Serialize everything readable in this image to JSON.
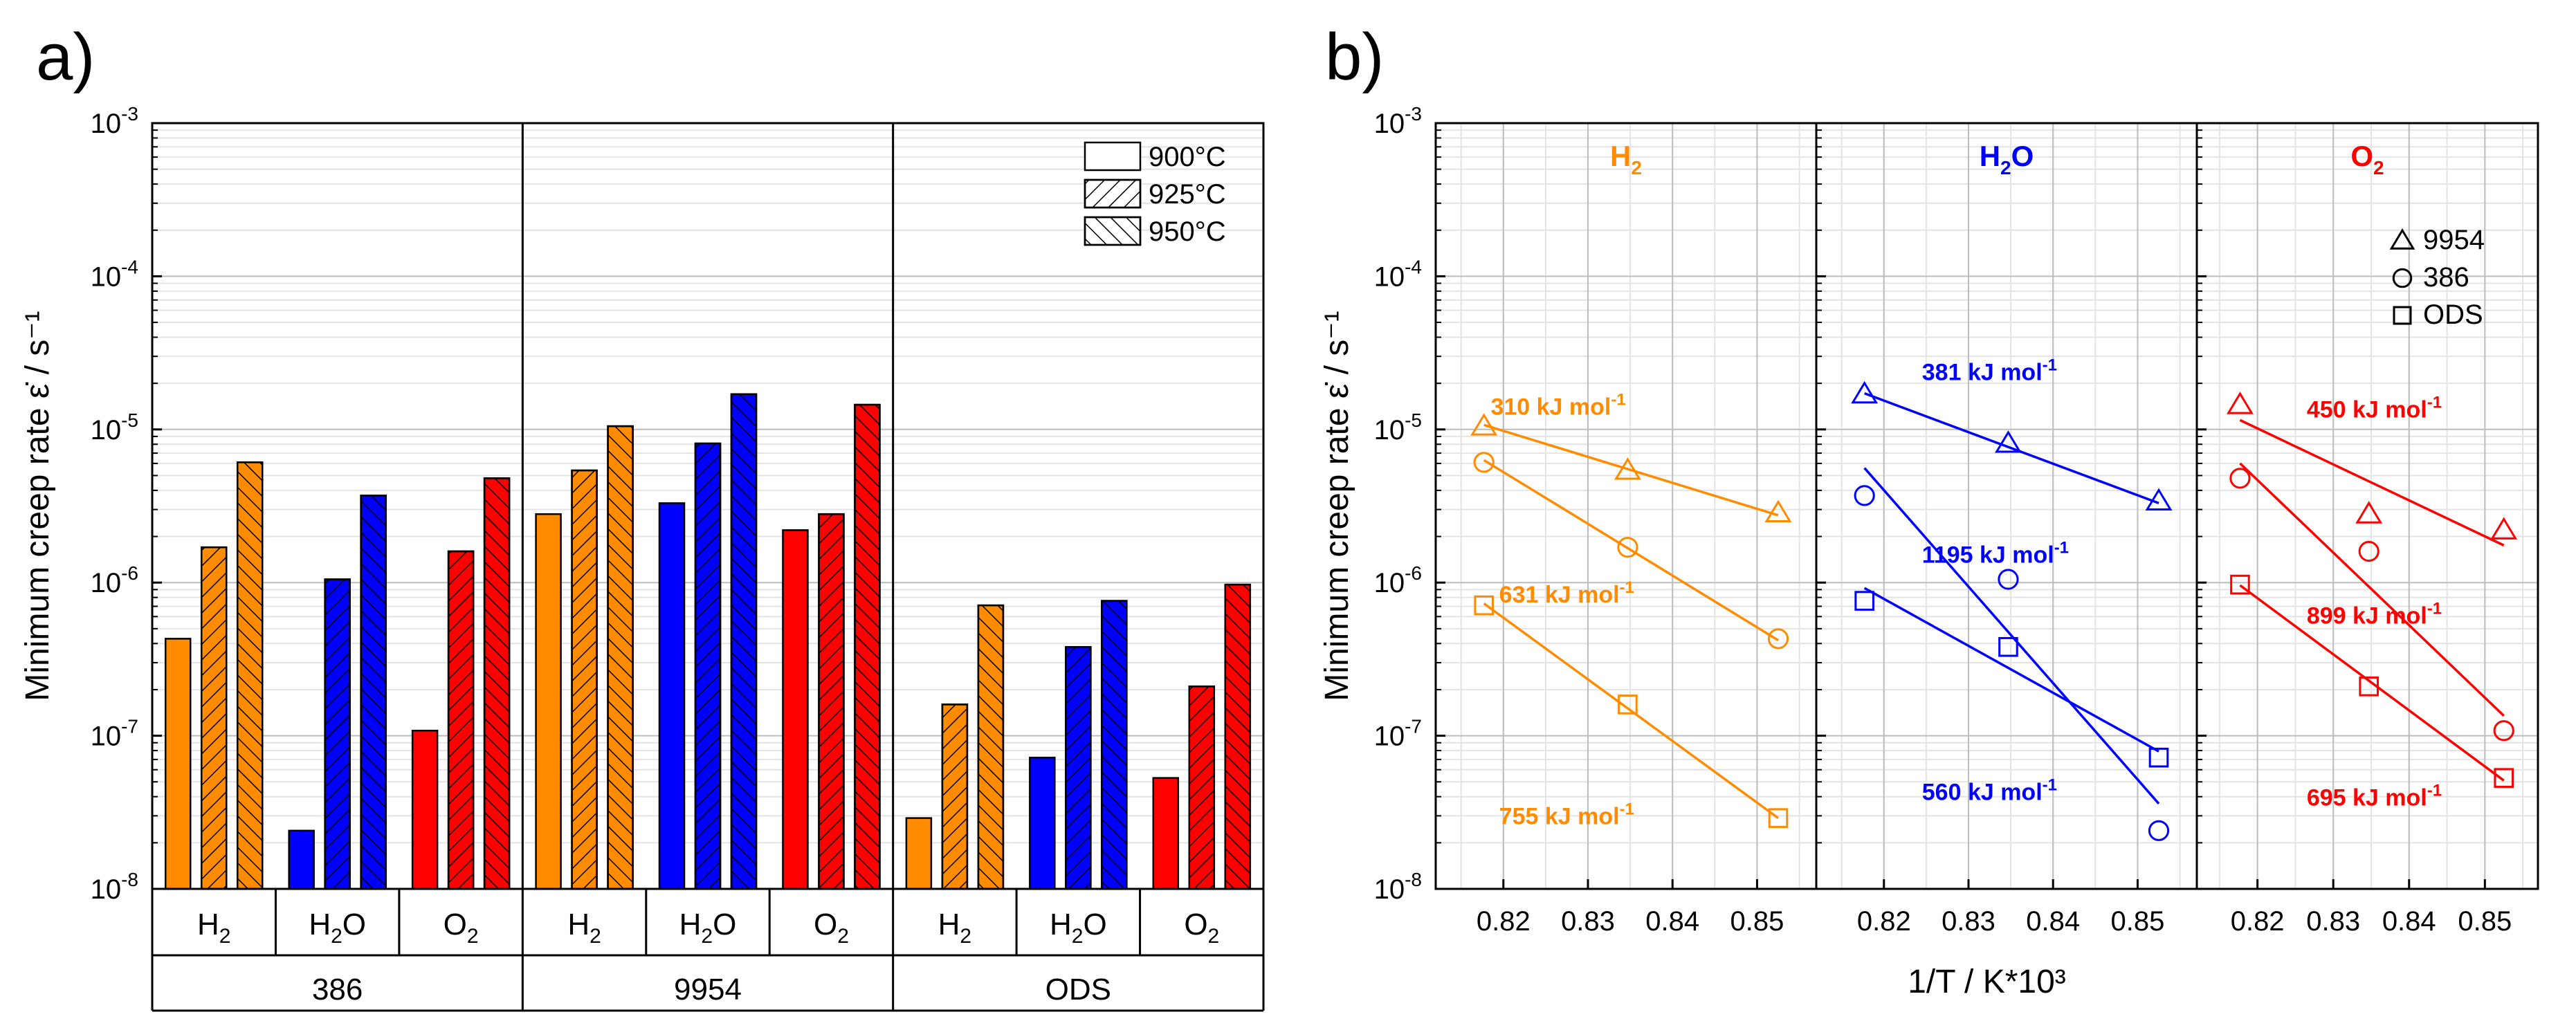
{
  "chart_data": [
    {
      "type": "bar",
      "panel_label": "a)",
      "ylabel": "Minimum creep rate ε̇ / s⁻¹",
      "yscale": "log",
      "ylim": [
        1e-08,
        0.001
      ],
      "ytick_exponents": [
        "-8",
        "-7",
        "-6",
        "-5",
        "-4",
        "-3"
      ],
      "tick_base": "10",
      "legend_position": "top-right",
      "legend": [
        {
          "label": "900°C",
          "pattern": "plain"
        },
        {
          "label": "925°C",
          "pattern": "forward-hatch"
        },
        {
          "label": "950°C",
          "pattern": "backward-hatch"
        }
      ],
      "groups": [
        {
          "name": "386",
          "subgroups": [
            {
              "label": "H",
              "sub": "2",
              "color": "#ff8c00",
              "values": [
                4.3e-07,
                1.7e-06,
                6.1e-06
              ]
            },
            {
              "label": "H",
              "sub": "2",
              "suffix": "O",
              "color": "#0000ff",
              "values": [
                2.4e-08,
                1.05e-06,
                3.7e-06
              ]
            },
            {
              "label": "O",
              "sub": "2",
              "color": "#ff0000",
              "values": [
                1.08e-07,
                1.6e-06,
                4.8e-06
              ]
            }
          ]
        },
        {
          "name": "9954",
          "subgroups": [
            {
              "label": "H",
              "sub": "2",
              "color": "#ff8c00",
              "values": [
                2.8e-06,
                5.4e-06,
                1.05e-05
              ]
            },
            {
              "label": "H",
              "sub": "2",
              "suffix": "O",
              "color": "#0000ff",
              "values": [
                3.3e-06,
                8.1e-06,
                1.7e-05
              ]
            },
            {
              "label": "O",
              "sub": "2",
              "color": "#ff0000",
              "values": [
                2.2e-06,
                2.8e-06,
                1.45e-05
              ]
            }
          ]
        },
        {
          "name": "ODS",
          "subgroups": [
            {
              "label": "H",
              "sub": "2",
              "color": "#ff8c00",
              "values": [
                2.9e-08,
                1.6e-07,
                7.1e-07
              ]
            },
            {
              "label": "H",
              "sub": "2",
              "suffix": "O",
              "color": "#0000ff",
              "values": [
                7.2e-08,
                3.8e-07,
                7.6e-07
              ]
            },
            {
              "label": "O",
              "sub": "2",
              "color": "#ff0000",
              "values": [
                5.3e-08,
                2.1e-07,
                9.7e-07
              ]
            }
          ]
        }
      ]
    },
    {
      "type": "scatter",
      "panel_label": "b)",
      "ylabel": "Minimum creep rate ε̇ / s⁻¹",
      "xlabel": "1/T / K*10³",
      "yscale": "log",
      "ylim": [
        1e-08,
        0.001
      ],
      "xlim": [
        0.812,
        0.857
      ],
      "xticks": [
        "0.82",
        "0.83",
        "0.84",
        "0.85"
      ],
      "ytick_exponents": [
        "-8",
        "-7",
        "-6",
        "-5",
        "-4",
        "-3"
      ],
      "tick_base": "10",
      "legend_position": "top-right",
      "legend": [
        {
          "marker": "triangle",
          "label": "9954"
        },
        {
          "marker": "circle",
          "label": "386"
        },
        {
          "marker": "square",
          "label": "ODS"
        }
      ],
      "panels": [
        {
          "title_main": "H",
          "title_sub": "2",
          "title_suffix": "",
          "color": "#ff8c00",
          "series": [
            {
              "marker": "triangle",
              "x": [
                0.8177,
                0.8347,
                0.8525
              ],
              "y": [
                1.05e-05,
                5.4e-06,
                2.85e-06
              ],
              "fit": {
                "x": [
                  0.8177,
                  0.8525
                ],
                "y": [
                  1.07e-05,
                  2.75e-06
                ]
              }
            },
            {
              "marker": "circle",
              "x": [
                0.8177,
                0.8347,
                0.8525
              ],
              "y": [
                6.1e-06,
                1.7e-06,
                4.3e-07
              ],
              "fit": {
                "x": [
                  0.8177,
                  0.8525
                ],
                "y": [
                  6.3e-06,
                  4.2e-07
                ]
              }
            },
            {
              "marker": "square",
              "x": [
                0.8177,
                0.8347,
                0.8525
              ],
              "y": [
                7.1e-07,
                1.6e-07,
                2.9e-08
              ],
              "fit": {
                "x": [
                  0.8177,
                  0.8525
                ],
                "y": [
                  7.3e-07,
                  2.9e-08
                ]
              }
            }
          ],
          "annotations": [
            {
              "value": "310",
              "unit": " kJ mol",
              "x": 0.8185,
              "y": 1.25e-05
            },
            {
              "value": "631",
              "unit": " kJ mol",
              "x": 0.8195,
              "y": 7.4e-07
            },
            {
              "value": "755",
              "unit": " kJ mol",
              "x": 0.8195,
              "y": 2.65e-08
            }
          ]
        },
        {
          "title_main": "H",
          "title_sub": "2",
          "title_suffix": "O",
          "color": "#0000ff",
          "series": [
            {
              "marker": "triangle",
              "x": [
                0.8177,
                0.8347,
                0.8525
              ],
              "y": [
                1.7e-05,
                8.1e-06,
                3.4e-06
              ],
              "fit": {
                "x": [
                  0.8177,
                  0.8525
                ],
                "y": [
                  1.72e-05,
                  3.3e-06
                ]
              }
            },
            {
              "marker": "circle",
              "x": [
                0.8177,
                0.8347,
                0.8525
              ],
              "y": [
                3.7e-06,
                1.05e-06,
                2.4e-08
              ],
              "fit": {
                "x": [
                  0.8177,
                  0.8525
                ],
                "y": [
                  5.6e-06,
                  3.6e-08
                ]
              }
            },
            {
              "marker": "square",
              "x": [
                0.8177,
                0.8347,
                0.8525
              ],
              "y": [
                7.6e-07,
                3.8e-07,
                7.2e-08
              ],
              "fit": {
                "x": [
                  0.8177,
                  0.8525
                ],
                "y": [
                  9.2e-07,
                  7.9e-08
                ]
              }
            }
          ],
          "annotations": [
            {
              "value": "381",
              "unit": " kJ mol",
              "x": 0.8245,
              "y": 2.1e-05
            },
            {
              "value": "1195",
              "unit": " kJ mol",
              "x": 0.8245,
              "y": 1.35e-06
            },
            {
              "value": "560",
              "unit": " kJ mol",
              "x": 0.8245,
              "y": 3.8e-08
            }
          ]
        },
        {
          "title_main": "O",
          "title_sub": "2",
          "title_suffix": "",
          "color": "#ff0000",
          "series": [
            {
              "marker": "triangle",
              "x": [
                0.8177,
                0.8347,
                0.8525
              ],
              "y": [
                1.45e-05,
                2.8e-06,
                2.2e-06
              ],
              "fit": {
                "x": [
                  0.8177,
                  0.8525
                ],
                "y": [
                  1.15e-05,
                  1.75e-06
                ]
              }
            },
            {
              "marker": "circle",
              "x": [
                0.8177,
                0.8347,
                0.8525
              ],
              "y": [
                4.8e-06,
                1.6e-06,
                1.08e-07
              ],
              "fit": {
                "x": [
                  0.8177,
                  0.8525
                ],
                "y": [
                  6e-06,
                  1.35e-07
                ]
              }
            },
            {
              "marker": "square",
              "x": [
                0.8177,
                0.8347,
                0.8525
              ],
              "y": [
                9.7e-07,
                2.1e-07,
                5.3e-08
              ],
              "fit": {
                "x": [
                  0.8177,
                  0.8525
                ],
                "y": [
                  9.6e-07,
                  5.1e-08
                ]
              }
            }
          ],
          "annotations": [
            {
              "value": "450",
              "unit": " kJ mol",
              "x": 0.8265,
              "y": 1.2e-05
            },
            {
              "value": "899",
              "unit": " kJ mol",
              "x": 0.8265,
              "y": 5.4e-07
            },
            {
              "value": "695",
              "unit": " kJ mol",
              "x": 0.8265,
              "y": 3.5e-08
            }
          ]
        }
      ]
    }
  ]
}
